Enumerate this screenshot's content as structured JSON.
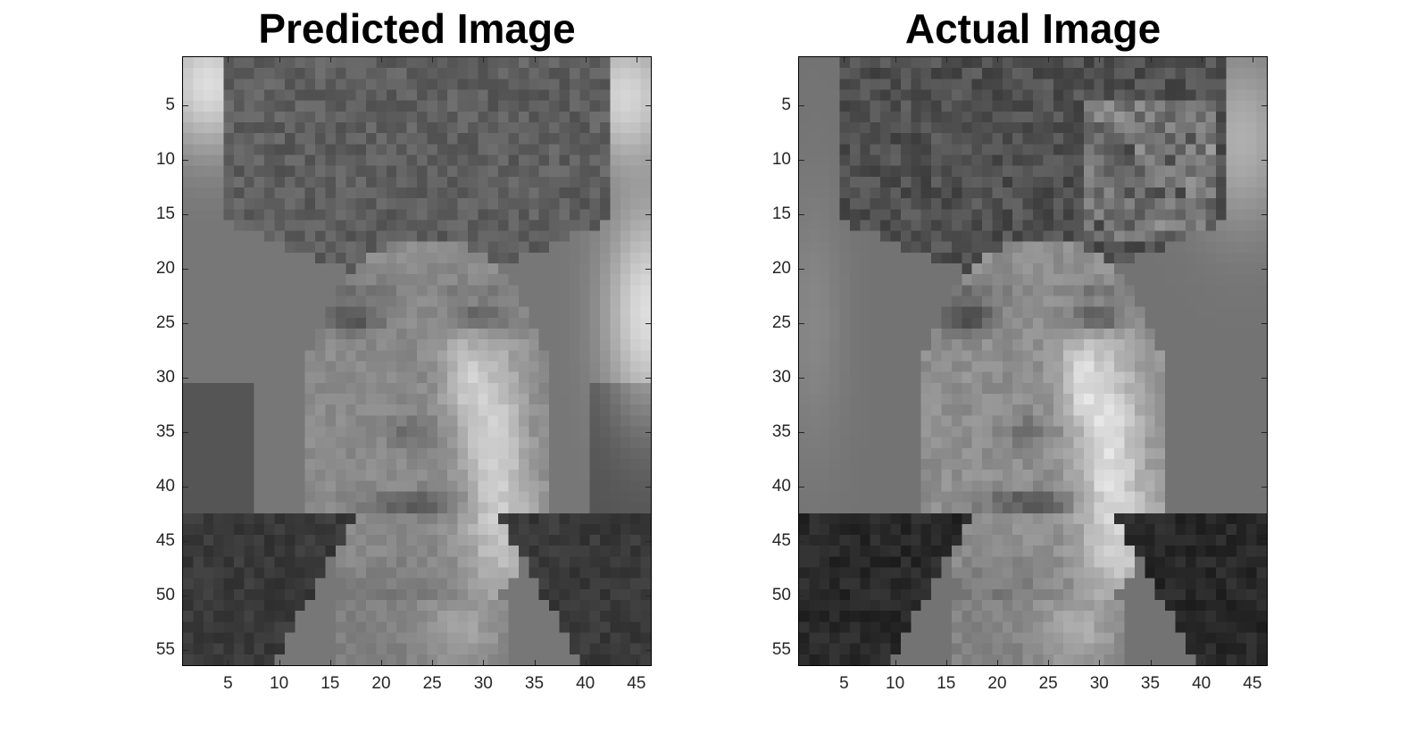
{
  "chart_data": [
    {
      "type": "heatmap",
      "title": "Predicted Image",
      "colormap": "gray",
      "rows": 56,
      "cols": 46,
      "xlim": [
        0.5,
        46.5
      ],
      "ylim": [
        0.5,
        56.5
      ],
      "y_reversed": true,
      "x_ticks": [
        5,
        10,
        15,
        20,
        25,
        30,
        35,
        40,
        45
      ],
      "y_ticks": [
        5,
        10,
        15,
        20,
        25,
        30,
        35,
        40,
        45,
        50,
        55
      ],
      "grid": false
    },
    {
      "type": "heatmap",
      "title": "Actual Image",
      "colormap": "gray",
      "rows": 56,
      "cols": 46,
      "xlim": [
        0.5,
        46.5
      ],
      "ylim": [
        0.5,
        56.5
      ],
      "y_reversed": true,
      "x_ticks": [
        5,
        10,
        15,
        20,
        25,
        30,
        35,
        40,
        45
      ],
      "y_ticks": [
        5,
        10,
        15,
        20,
        25,
        30,
        35,
        40,
        45,
        50,
        55
      ],
      "grid": false
    }
  ]
}
